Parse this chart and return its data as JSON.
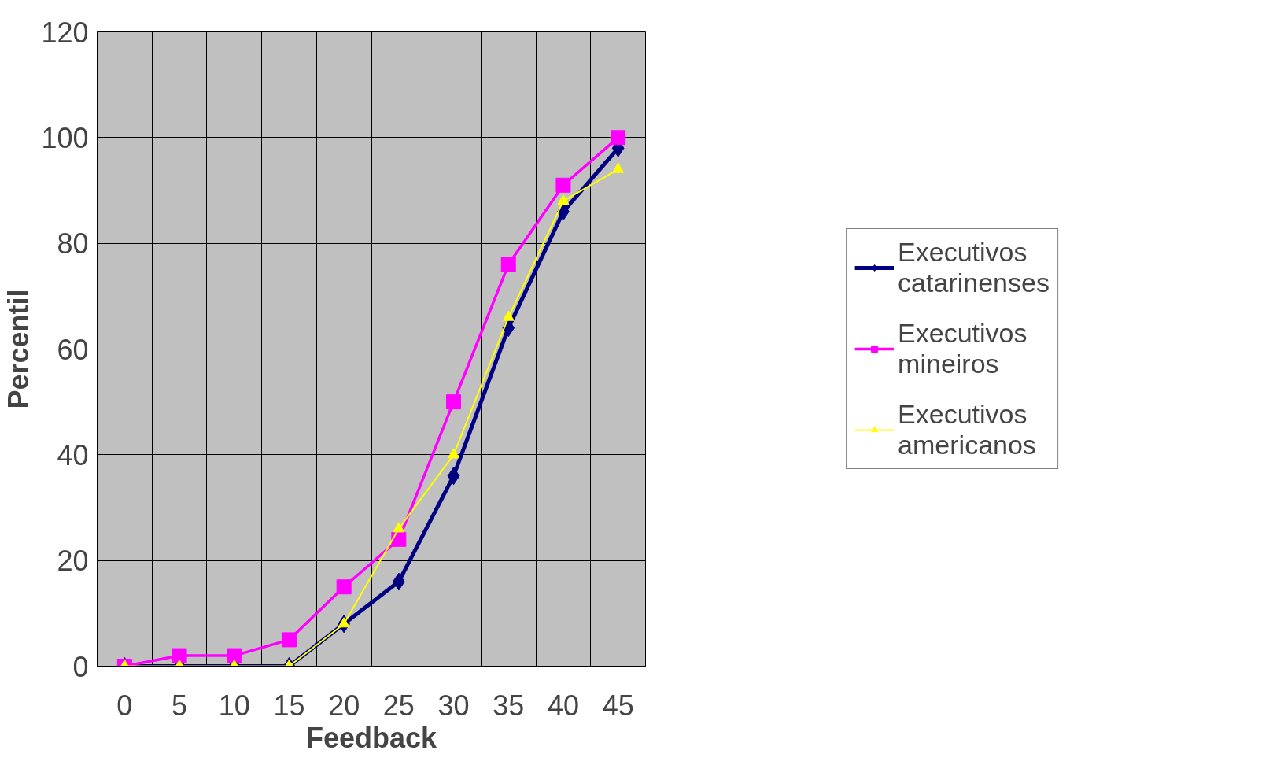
{
  "chart_data": {
    "type": "line",
    "xlabel": "Feedback",
    "ylabel": "Percentil",
    "categories": [
      "0",
      "5",
      "10",
      "15",
      "20",
      "25",
      "30",
      "35",
      "40",
      "45"
    ],
    "series": [
      {
        "name": "Executivos catarinenses",
        "color": "#000080",
        "marker": "diamond",
        "values": [
          0,
          0,
          0,
          0,
          8,
          16,
          36,
          64,
          86,
          98
        ]
      },
      {
        "name": "Executivos mineiros",
        "color": "#ff00ff",
        "marker": "square",
        "values": [
          0,
          2,
          2,
          5,
          15,
          24,
          50,
          76,
          91,
          100
        ]
      },
      {
        "name": "Executivos americanos",
        "color": "#ffff00",
        "marker": "triangle",
        "values": [
          0,
          0,
          0,
          0,
          8,
          26,
          40,
          66,
          88,
          94
        ]
      }
    ],
    "ylim": [
      0,
      120
    ],
    "yticks": [
      0,
      20,
      40,
      60,
      80,
      100,
      120
    ],
    "grid": true,
    "legend": "right"
  }
}
